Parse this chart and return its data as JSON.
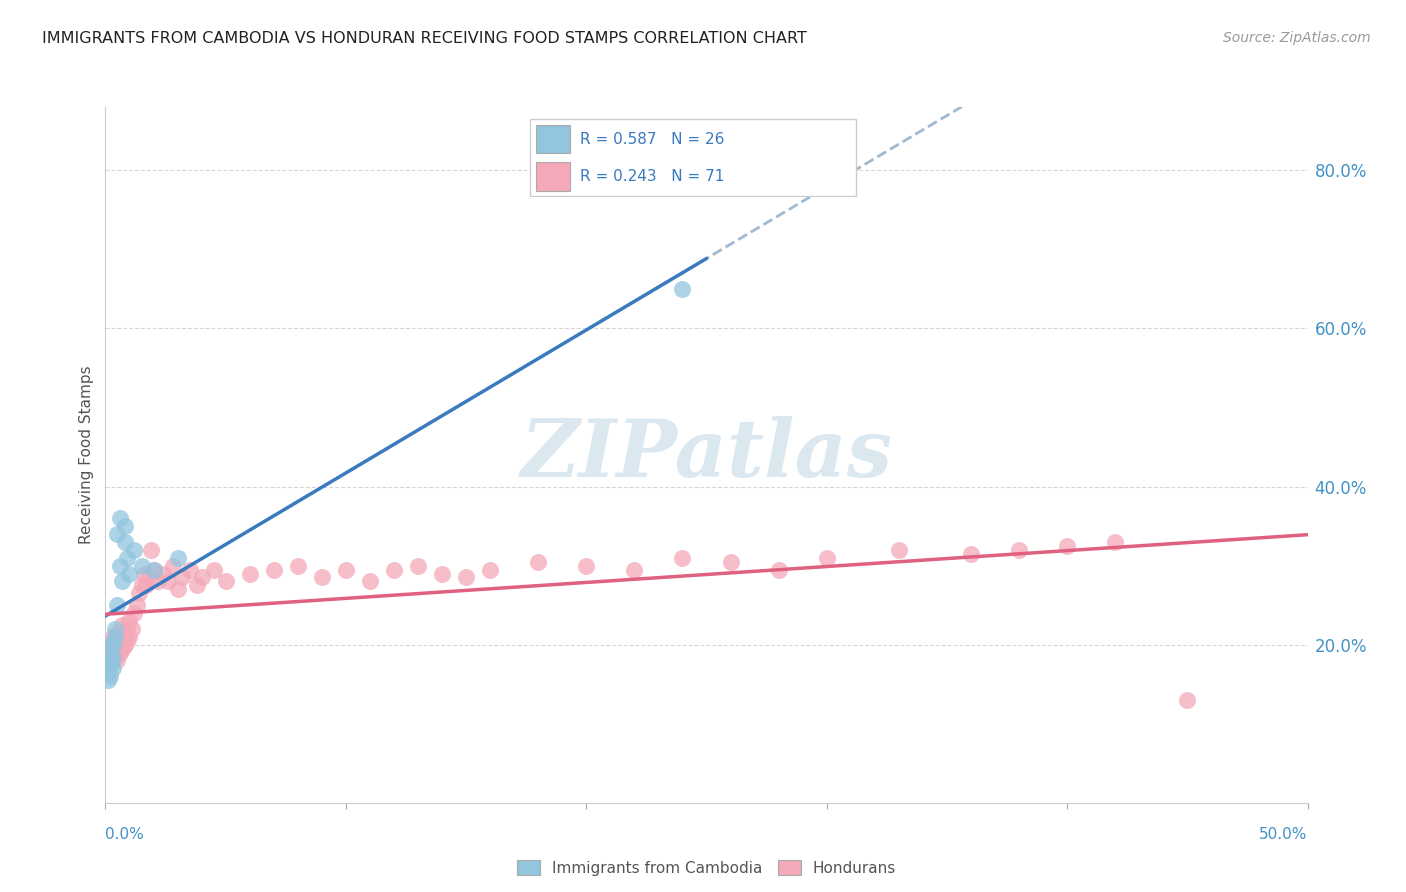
{
  "title": "IMMIGRANTS FROM CAMBODIA VS HONDURAN RECEIVING FOOD STAMPS CORRELATION CHART",
  "source": "Source: ZipAtlas.com",
  "ylabel": "Receiving Food Stamps",
  "ylabel_right_ticks": [
    "20.0%",
    "40.0%",
    "60.0%",
    "80.0%"
  ],
  "ylabel_right_vals": [
    0.2,
    0.4,
    0.6,
    0.8
  ],
  "legend_cambodia": "R = 0.587   N = 26",
  "legend_honduran": "R = 0.243   N = 71",
  "legend_label_cambodia": "Immigrants from Cambodia",
  "legend_label_honduran": "Hondurans",
  "color_cambodia": "#92c5de",
  "color_honduran": "#f4a8b8",
  "color_line_cambodia": "#3a7abf",
  "color_line_honduran": "#e06080",
  "color_line_dashed": "#a0b8d0",
  "watermark_text": "ZIPatlas",
  "xlim": [
    0.0,
    0.5
  ],
  "ylim": [
    0.0,
    0.88
  ],
  "cambodia_x": [
    0.001,
    0.001,
    0.001,
    0.002,
    0.002,
    0.002,
    0.002,
    0.003,
    0.003,
    0.003,
    0.004,
    0.004,
    0.005,
    0.005,
    0.006,
    0.006,
    0.007,
    0.008,
    0.008,
    0.009,
    0.01,
    0.012,
    0.015,
    0.02,
    0.03,
    0.24
  ],
  "cambodia_y": [
    0.155,
    0.165,
    0.175,
    0.16,
    0.175,
    0.185,
    0.2,
    0.17,
    0.185,
    0.2,
    0.21,
    0.22,
    0.25,
    0.34,
    0.36,
    0.3,
    0.28,
    0.33,
    0.35,
    0.31,
    0.29,
    0.32,
    0.3,
    0.295,
    0.31,
    0.65
  ],
  "honduran_x": [
    0.001,
    0.001,
    0.001,
    0.002,
    0.002,
    0.002,
    0.003,
    0.003,
    0.003,
    0.004,
    0.004,
    0.004,
    0.005,
    0.005,
    0.005,
    0.006,
    0.006,
    0.007,
    0.007,
    0.007,
    0.008,
    0.008,
    0.009,
    0.009,
    0.01,
    0.01,
    0.011,
    0.012,
    0.013,
    0.014,
    0.015,
    0.016,
    0.017,
    0.018,
    0.019,
    0.02,
    0.022,
    0.024,
    0.026,
    0.028,
    0.03,
    0.032,
    0.035,
    0.038,
    0.04,
    0.045,
    0.05,
    0.06,
    0.07,
    0.08,
    0.09,
    0.1,
    0.11,
    0.12,
    0.13,
    0.14,
    0.15,
    0.16,
    0.18,
    0.2,
    0.22,
    0.24,
    0.26,
    0.28,
    0.3,
    0.33,
    0.36,
    0.38,
    0.4,
    0.42,
    0.45
  ],
  "honduran_y": [
    0.175,
    0.19,
    0.2,
    0.175,
    0.185,
    0.2,
    0.18,
    0.195,
    0.21,
    0.185,
    0.195,
    0.21,
    0.18,
    0.195,
    0.215,
    0.19,
    0.205,
    0.195,
    0.21,
    0.225,
    0.2,
    0.215,
    0.205,
    0.22,
    0.21,
    0.23,
    0.22,
    0.24,
    0.25,
    0.265,
    0.275,
    0.29,
    0.275,
    0.285,
    0.32,
    0.295,
    0.28,
    0.29,
    0.28,
    0.3,
    0.27,
    0.285,
    0.295,
    0.275,
    0.285,
    0.295,
    0.28,
    0.29,
    0.295,
    0.3,
    0.285,
    0.295,
    0.28,
    0.295,
    0.3,
    0.29,
    0.285,
    0.295,
    0.305,
    0.3,
    0.295,
    0.31,
    0.305,
    0.295,
    0.31,
    0.32,
    0.315,
    0.32,
    0.325,
    0.33,
    0.13
  ]
}
